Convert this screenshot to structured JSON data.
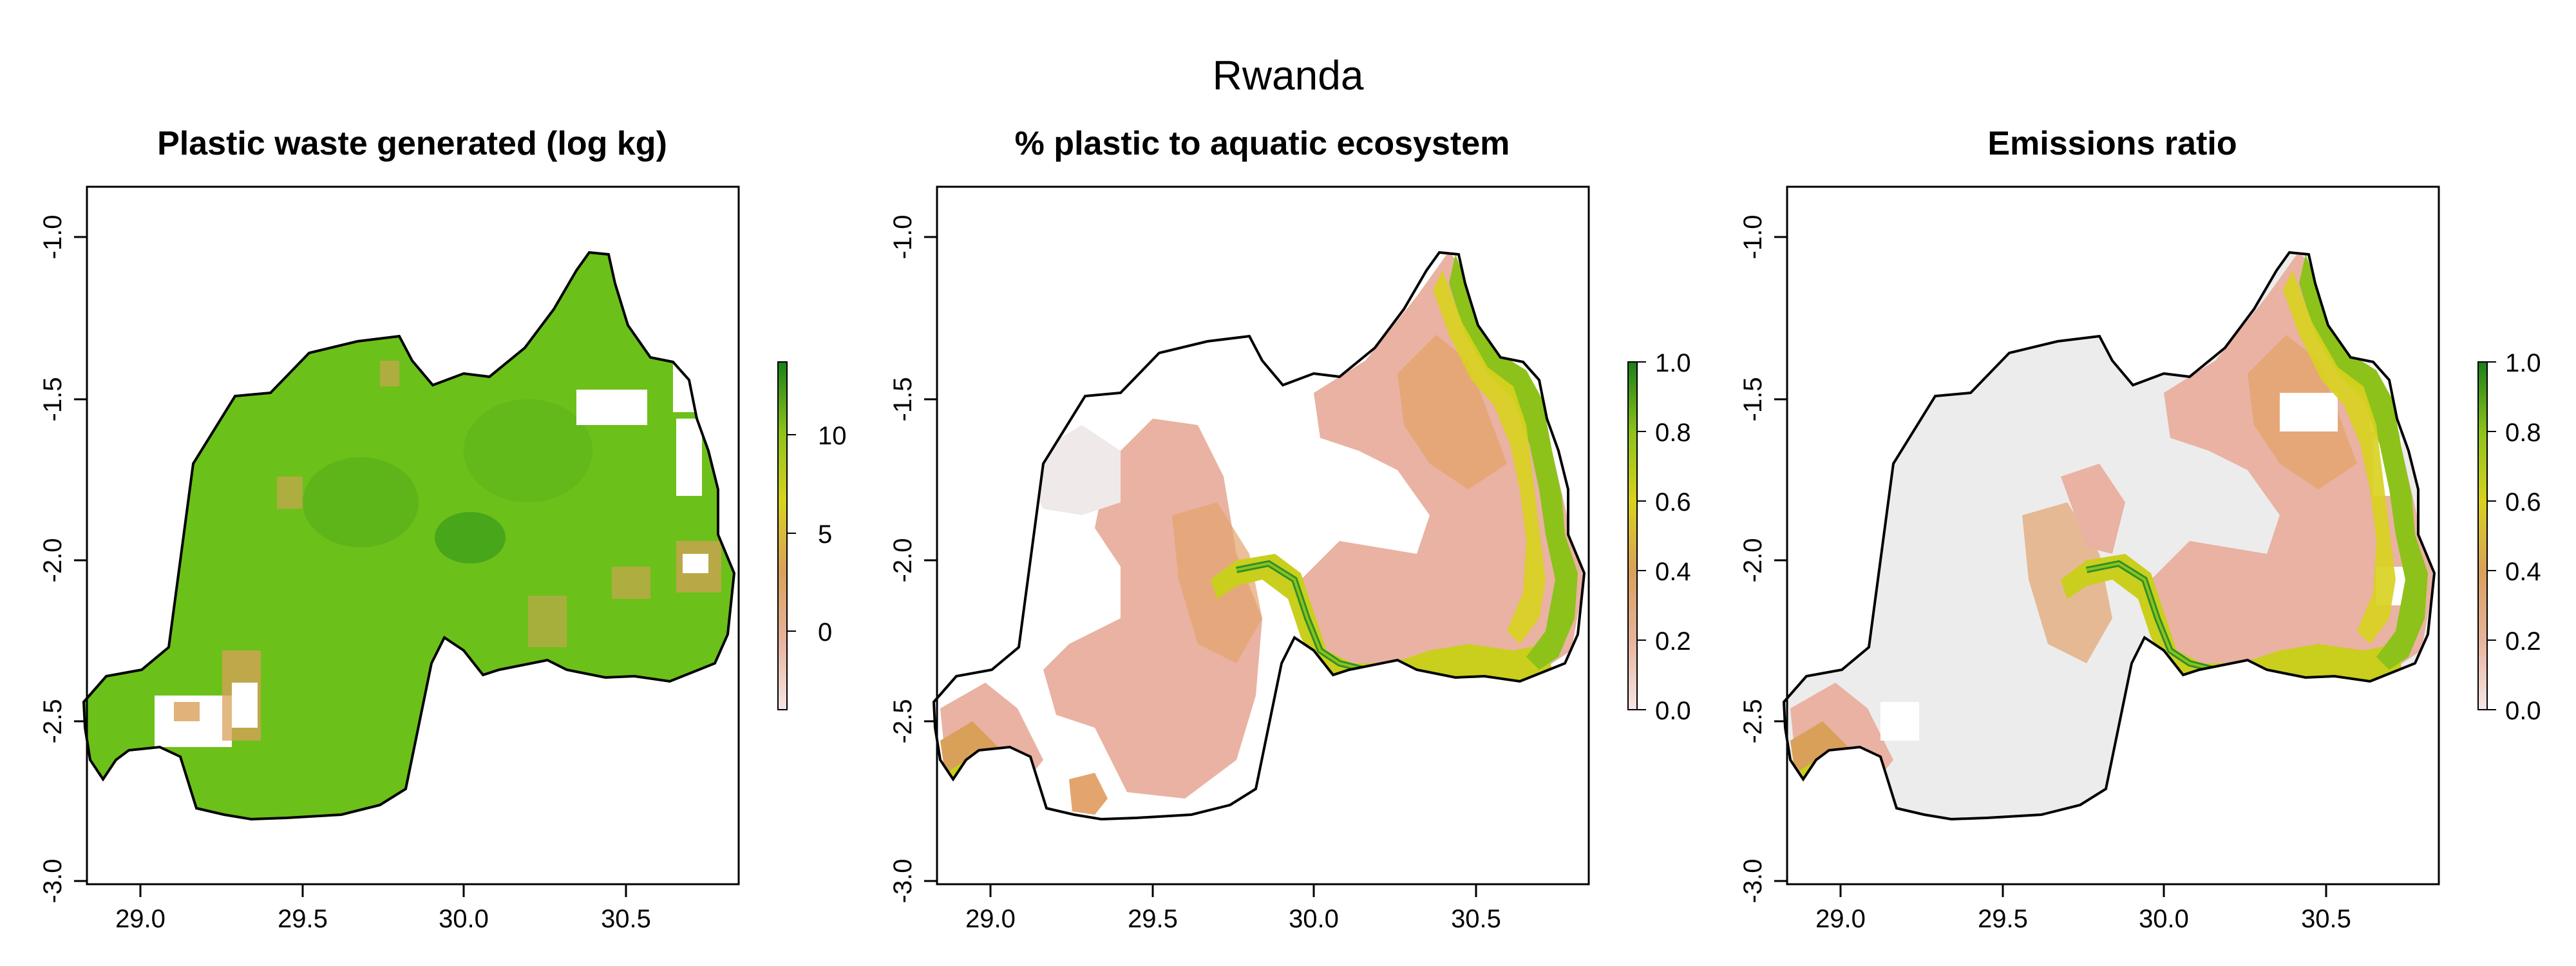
{
  "title": "Rwanda",
  "panels": [
    {
      "title": "Plastic waste generated (log kg)",
      "x_ticks": [
        "29.0",
        "29.5",
        "30.0",
        "30.5"
      ],
      "y_ticks": [
        "-1.0",
        "-1.5",
        "-2.0",
        "-2.5",
        "-3.0"
      ],
      "colorbar_ticks": [
        "10",
        "5",
        "0"
      ],
      "colorbar_colors": [
        "#1a7f1a",
        "#8cc21a",
        "#d8d21e",
        "#d9a05a",
        "#f2d9d9"
      ]
    },
    {
      "title": "% plastic to aquatic ecosystem",
      "x_ticks": [
        "29.0",
        "29.5",
        "30.0",
        "30.5"
      ],
      "y_ticks": [
        "-1.0",
        "-1.5",
        "-2.0",
        "-2.5",
        "-3.0"
      ],
      "colorbar_ticks": [
        "1.0",
        "0.8",
        "0.6",
        "0.4",
        "0.2",
        "0.0"
      ],
      "colorbar_colors": [
        "#1a7f1a",
        "#8cc21a",
        "#d8d21e",
        "#d9a05a",
        "#f2d9d9"
      ]
    },
    {
      "title": "Emissions ratio",
      "x_ticks": [
        "29.0",
        "29.5",
        "30.0",
        "30.5"
      ],
      "y_ticks": [
        "-1.0",
        "-1.5",
        "-2.0",
        "-2.5",
        "-3.0"
      ],
      "colorbar_ticks": [
        "1.0",
        "0.8",
        "0.6",
        "0.4",
        "0.2",
        "0.0"
      ],
      "colorbar_colors": [
        "#1a7f1a",
        "#8cc21a",
        "#d8d21e",
        "#d9a05a",
        "#f2d9d9"
      ]
    }
  ],
  "map_fill": {
    "waste_main": "#6cc01a",
    "waste_dense": "#3f9f1a",
    "waste_low": "#d9a05a",
    "aquatic_low": "#e9b2a2",
    "aquatic_mid": "#e3a46e",
    "aquatic_high": "#c9cf1c",
    "aquatic_river": "#2f8f2a",
    "background_grey": "#ececec"
  }
}
